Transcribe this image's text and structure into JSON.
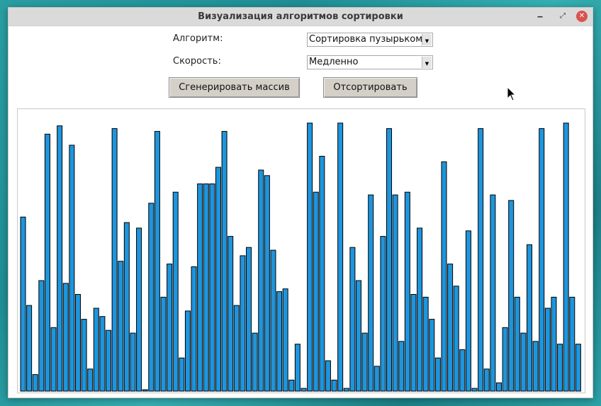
{
  "window": {
    "title": "Визуализация алгоритмов сортировки",
    "controls": {
      "minimize": "‒",
      "maximize": "⤢",
      "close": "✕"
    }
  },
  "form": {
    "algorithm_label": "Алгоритм:",
    "algorithm_value": "Сортировка пузырьком",
    "speed_label": "Скорость:",
    "speed_value": "Медленно",
    "generate_button": "Сгенерировать массив",
    "sort_button": "Отсортировать"
  },
  "colors": {
    "bar_fill": "#1e95dc",
    "bar_stroke": "#000000",
    "button_face": "#d4d0c8"
  },
  "chart_data": {
    "type": "bar",
    "max_value": 100,
    "values": [
      63,
      31,
      6,
      40,
      93,
      23,
      96,
      39,
      89,
      35,
      26,
      8,
      30,
      27,
      22,
      95,
      47,
      61,
      21,
      59,
      0,
      68,
      94,
      34,
      46,
      72,
      12,
      29,
      45,
      75,
      75,
      75,
      81,
      94,
      56,
      31,
      49,
      52,
      21,
      80,
      78,
      51,
      36,
      37,
      4,
      17,
      1,
      97,
      72,
      85,
      11,
      4,
      97,
      1,
      52,
      40,
      21,
      71,
      9,
      56,
      95,
      71,
      18,
      72,
      35,
      59,
      34,
      26,
      12,
      83,
      46,
      38,
      15,
      58,
      1,
      95,
      8,
      71,
      3,
      23,
      69,
      34,
      21,
      53,
      18,
      95,
      30,
      34,
      17,
      97,
      34,
      17
    ]
  }
}
